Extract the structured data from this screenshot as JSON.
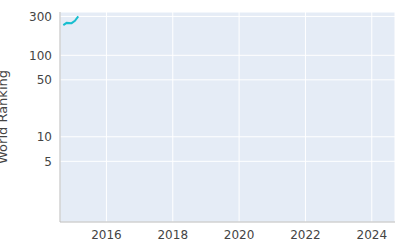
{
  "chart_data": {
    "type": "line",
    "y_label": "World Ranking",
    "x": [
      2014.7,
      2014.8,
      2014.95,
      2015.05,
      2015.15
    ],
    "values": [
      235,
      250,
      248,
      265,
      300
    ],
    "color": "#17becf",
    "xlim": [
      2014.6,
      2024.7
    ],
    "xticks": [
      2016,
      2018,
      2020,
      2022,
      2024
    ],
    "ylim": [
      0.9,
      340
    ],
    "yticks": [
      5,
      10,
      50,
      100,
      300
    ],
    "log": "y",
    "grid": true
  }
}
